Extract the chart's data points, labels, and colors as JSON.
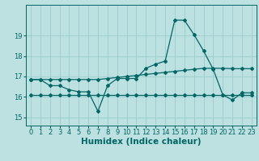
{
  "xlabel": "Humidex (Indice chaleur)",
  "bg_color": "#bde0e0",
  "line_color": "#006666",
  "grid_color": "#99cccc",
  "xlim": [
    -0.5,
    23.5
  ],
  "ylim": [
    14.6,
    20.5
  ],
  "yticks": [
    15,
    16,
    17,
    18,
    19
  ],
  "xticks": [
    0,
    1,
    2,
    3,
    4,
    5,
    6,
    7,
    8,
    9,
    10,
    11,
    12,
    13,
    14,
    15,
    16,
    17,
    18,
    19,
    20,
    21,
    22,
    23
  ],
  "line1_x": [
    0,
    1,
    2,
    3,
    4,
    5,
    6,
    7,
    8,
    9,
    10,
    11,
    12,
    13,
    14,
    15,
    16,
    17,
    18,
    19,
    20,
    21,
    22,
    23
  ],
  "line1_y": [
    16.1,
    16.1,
    16.1,
    16.1,
    16.1,
    16.1,
    16.1,
    16.1,
    16.1,
    16.1,
    16.1,
    16.1,
    16.1,
    16.1,
    16.1,
    16.1,
    16.1,
    16.1,
    16.1,
    16.1,
    16.1,
    16.1,
    16.1,
    16.1
  ],
  "line2_x": [
    0,
    1,
    2,
    3,
    4,
    5,
    6,
    7,
    8,
    9,
    10,
    11,
    12,
    13,
    14,
    15,
    16,
    17,
    18,
    19,
    20,
    21,
    22,
    23
  ],
  "line2_y": [
    16.85,
    16.85,
    16.85,
    16.85,
    16.85,
    16.85,
    16.85,
    16.85,
    16.9,
    16.95,
    17.0,
    17.05,
    17.1,
    17.15,
    17.2,
    17.25,
    17.3,
    17.35,
    17.4,
    17.4,
    17.4,
    17.38,
    17.38,
    17.38
  ],
  "line3_x": [
    0,
    1,
    2,
    3,
    4,
    5,
    6,
    7,
    8,
    9,
    10,
    11,
    12,
    13,
    14,
    15,
    16,
    17,
    18,
    19,
    20,
    21,
    22,
    23
  ],
  "line3_y": [
    16.85,
    16.85,
    16.55,
    16.55,
    16.35,
    16.25,
    16.25,
    15.3,
    16.55,
    16.9,
    16.9,
    16.9,
    17.4,
    17.6,
    17.75,
    19.75,
    19.75,
    19.05,
    18.25,
    17.35,
    16.1,
    15.85,
    16.2,
    16.2
  ],
  "axis_fontsize": 7,
  "tick_fontsize": 6.0,
  "xlabel_fontsize": 7.5
}
